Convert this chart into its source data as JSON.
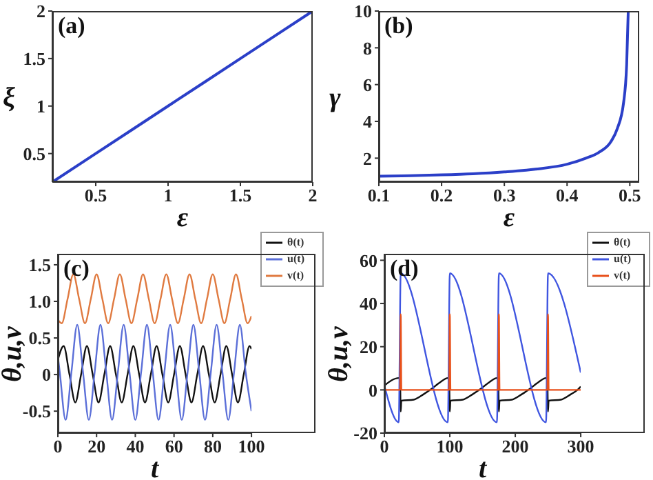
{
  "chart_data": [
    {
      "type": "line",
      "annotations": [
        "(a)"
      ],
      "xlabel": "ε",
      "ylabel": "ξ",
      "xlim": [
        0.2,
        2
      ],
      "xticks": [
        0.5,
        1,
        1.5,
        2
      ],
      "ylim": [
        0.2,
        2
      ],
      "yticks": [
        0.5,
        1,
        1.5,
        2
      ],
      "legend": false,
      "series": [
        {
          "color": "#2b3fc8",
          "x": [
            0.2,
            0.5,
            1,
            1.5,
            2
          ],
          "values": [
            0.2,
            0.5,
            1,
            1.5,
            2
          ]
        }
      ]
    },
    {
      "type": "line",
      "annotations": [
        "(b)"
      ],
      "xlabel": "ε",
      "ylabel": "γ",
      "xlim": [
        0.1,
        0.515
      ],
      "xticks": [
        0.1,
        0.2,
        0.3,
        0.4,
        0.5
      ],
      "ylim": [
        0.7,
        10
      ],
      "yticks": [
        2,
        4,
        6,
        8,
        10
      ],
      "legend": false,
      "series": [
        {
          "color": "#2b3fc8",
          "x": [
            0.1,
            0.15,
            0.2,
            0.25,
            0.3,
            0.35,
            0.4,
            0.43,
            0.45,
            0.47,
            0.48,
            0.49,
            0.495,
            0.4975
          ],
          "values": [
            1.02,
            1.05,
            1.09,
            1.15,
            1.25,
            1.4,
            1.67,
            2,
            2.3,
            2.9,
            3.6,
            5,
            7.1,
            10
          ]
        }
      ]
    },
    {
      "type": "line",
      "annotations": [
        "(c)"
      ],
      "xlabel": "t",
      "ylabel": "θ,u,v",
      "xlim": [
        0,
        100
      ],
      "xticks": [
        0,
        20,
        40,
        60,
        80,
        100
      ],
      "ylim": [
        -0.8,
        1.65
      ],
      "yticks": [
        -0.5,
        0,
        0.5,
        {
          "value": 1,
          "label": "1.0"
        },
        1.5
      ],
      "legend": "top right",
      "series": [
        {
          "name": "θ(t)",
          "color": "#111111",
          "x": [
            0,
            3,
            6,
            9,
            12,
            15,
            18,
            21,
            24,
            27,
            30,
            33,
            36,
            39,
            42,
            45,
            48,
            51,
            54,
            57,
            60,
            63,
            66,
            69,
            72,
            75,
            78,
            81,
            84,
            87,
            90,
            93,
            96,
            99,
            100
          ],
          "values": [
            0.2,
            0.39,
            0,
            -0.38,
            0,
            0.39,
            0,
            -0.38,
            0,
            0.39,
            0,
            -0.38,
            0,
            0.39,
            0,
            -0.38,
            0,
            0.39,
            0,
            -0.38,
            0,
            0.39,
            0,
            -0.38,
            0,
            0.39,
            0,
            -0.38,
            0,
            0.39,
            0,
            -0.38,
            0,
            0.39,
            0.35
          ]
        },
        {
          "name": "u(t)",
          "color": "#5b6fd8",
          "x": [
            0,
            1,
            4,
            7,
            10,
            13,
            16,
            19,
            22,
            25,
            28,
            31,
            34,
            37,
            40,
            43,
            46,
            49,
            52,
            55,
            58,
            61,
            64,
            67,
            70,
            73,
            76,
            79,
            82,
            85,
            88,
            91,
            94,
            97,
            100
          ],
          "values": [
            0.25,
            0.03,
            -0.62,
            0.03,
            0.68,
            0.03,
            -0.62,
            0.03,
            0.68,
            0.03,
            -0.62,
            0.03,
            0.68,
            0.03,
            -0.62,
            0.03,
            0.68,
            0.03,
            -0.62,
            0.03,
            0.68,
            0.03,
            -0.62,
            0.03,
            0.68,
            0.03,
            -0.62,
            0.03,
            0.68,
            0.03,
            -0.62,
            0.03,
            0.68,
            0.03,
            -0.5
          ]
        },
        {
          "name": "v(t)",
          "color": "#e07a40",
          "x": [
            0,
            2,
            5,
            8,
            11,
            14,
            17,
            20,
            23,
            26,
            29,
            32,
            35,
            38,
            41,
            44,
            47,
            50,
            53,
            56,
            59,
            62,
            65,
            68,
            71,
            74,
            77,
            80,
            83,
            86,
            89,
            92,
            95,
            98,
            100
          ],
          "values": [
            0.75,
            0.7,
            1.03,
            1.37,
            1.03,
            0.7,
            1.03,
            1.37,
            1.03,
            0.7,
            1.03,
            1.37,
            1.03,
            0.7,
            1.03,
            1.37,
            1.03,
            0.7,
            1.03,
            1.37,
            1.03,
            0.7,
            1.03,
            1.37,
            1.03,
            0.7,
            1.03,
            1.37,
            1.03,
            0.7,
            1.03,
            1.37,
            1.03,
            0.7,
            0.8
          ]
        }
      ]
    },
    {
      "type": "line",
      "annotations": [
        "(d)"
      ],
      "xlabel": "t",
      "ylabel": "θ,u,v",
      "xlim": [
        0,
        300
      ],
      "xticks": [
        0,
        100,
        200,
        300
      ],
      "ylim": [
        -20,
        63
      ],
      "yticks": [
        -20,
        0,
        20,
        40,
        60
      ],
      "legend": "top right",
      "series": [
        {
          "name": "θ(t)",
          "color": "#111111",
          "x": [
            0,
            22,
            24,
            25,
            26,
            45,
            60,
            70,
            85,
            97,
            99,
            100,
            101,
            120,
            135,
            145,
            160,
            172,
            174,
            175,
            176,
            195,
            210,
            220,
            235,
            247,
            249,
            250,
            251,
            270,
            285,
            295,
            300
          ],
          "values": [
            2,
            5.5,
            5.5,
            -10,
            -5,
            -4.5,
            -2,
            0,
            3.5,
            5.5,
            5.5,
            -10,
            -5,
            -4.5,
            -2,
            0,
            3.5,
            5.5,
            5.5,
            -10,
            -5,
            -4.5,
            -2,
            0,
            3.5,
            5.5,
            5.5,
            -10,
            -5,
            -4.5,
            -2,
            0,
            1.5
          ]
        },
        {
          "name": "u(t)",
          "color": "#3f55e0",
          "x": [
            0,
            22,
            25,
            97,
            100,
            172,
            175,
            247,
            250,
            300
          ],
          "values": [
            2,
            -15,
            54,
            -15,
            54,
            -15,
            54,
            -15,
            54,
            8
          ]
        },
        {
          "name": "v(t)",
          "color": "#e8501a",
          "x": [
            0,
            24,
            25,
            26,
            99,
            100,
            101,
            174,
            175,
            176,
            249,
            250,
            251,
            300
          ],
          "values": [
            0,
            0,
            35,
            0,
            0,
            35,
            0,
            0,
            35,
            0,
            0,
            35,
            0,
            0
          ]
        }
      ]
    }
  ]
}
